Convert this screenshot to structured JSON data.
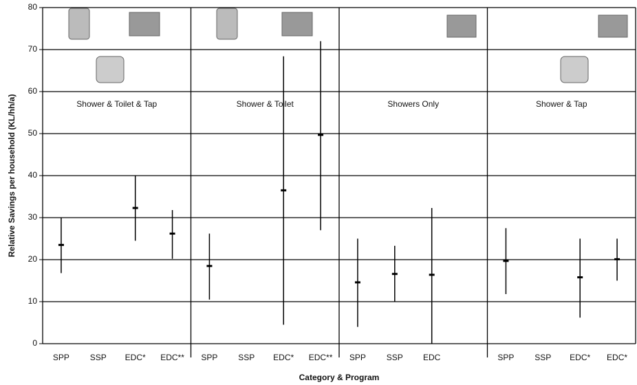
{
  "chart_data": {
    "type": "errorbar",
    "x_label": "Category & Program",
    "y_label": "Relative Savings per household (KL/hh/a)",
    "ylim": [
      0,
      80
    ],
    "yticks": [
      0,
      10,
      20,
      30,
      40,
      50,
      60,
      70,
      80
    ],
    "grid": true,
    "color": "#000000",
    "groups": [
      "Shower & Toilet & Tap",
      "Shower & Toilet",
      "Showers Only",
      "Shower & Tap"
    ],
    "categories": [
      "SPP",
      "SSP",
      "EDC*",
      "EDC**",
      "SPP",
      "SSP",
      "EDC*",
      "EDC**",
      "SPP",
      "SSP",
      "EDC",
      null,
      "SPP",
      "SSP",
      "EDC*",
      "EDC*"
    ],
    "values": [
      23.5,
      null,
      32.3,
      26.2,
      18.5,
      null,
      36.5,
      49.7,
      14.6,
      16.6,
      16.4,
      null,
      19.7,
      null,
      15.8,
      20.1
    ],
    "lows": [
      16.8,
      null,
      24.5,
      20.2,
      10.5,
      null,
      4.5,
      27,
      4,
      10,
      0,
      null,
      11.8,
      null,
      6.2,
      15
    ],
    "highs": [
      30,
      null,
      40,
      31.8,
      26.2,
      null,
      68.4,
      72,
      25,
      23.3,
      32.3,
      null,
      27.5,
      null,
      25,
      25
    ]
  }
}
